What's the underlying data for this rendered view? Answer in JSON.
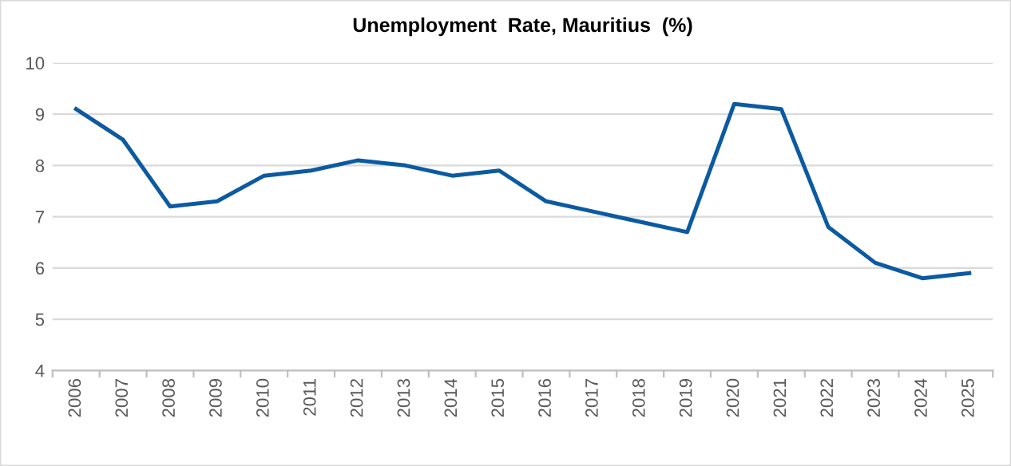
{
  "chart_data": {
    "type": "line",
    "title": "Unemployment  Rate, Mauritius  (%)",
    "categories": [
      "2006",
      "2007",
      "2008",
      "2009",
      "2010",
      "2011",
      "2012",
      "2013",
      "2014",
      "2015",
      "2016",
      "2017",
      "2018",
      "2019",
      "2020",
      "2021",
      "2022",
      "2023",
      "2024",
      "2025"
    ],
    "series": [
      {
        "color": "#0b5aa2",
        "values": [
          9.1,
          8.5,
          7.2,
          7.3,
          7.8,
          7.9,
          8.1,
          8.0,
          7.8,
          7.9,
          7.3,
          7.1,
          6.9,
          6.7,
          9.2,
          9.1,
          6.8,
          6.1,
          5.8,
          5.9
        ]
      }
    ],
    "ylim": [
      4,
      10
    ],
    "yticks": [
      4,
      5,
      6,
      7,
      8,
      9,
      10
    ],
    "grid": "y",
    "legend": false,
    "marker": "none",
    "line_style": "solid"
  }
}
